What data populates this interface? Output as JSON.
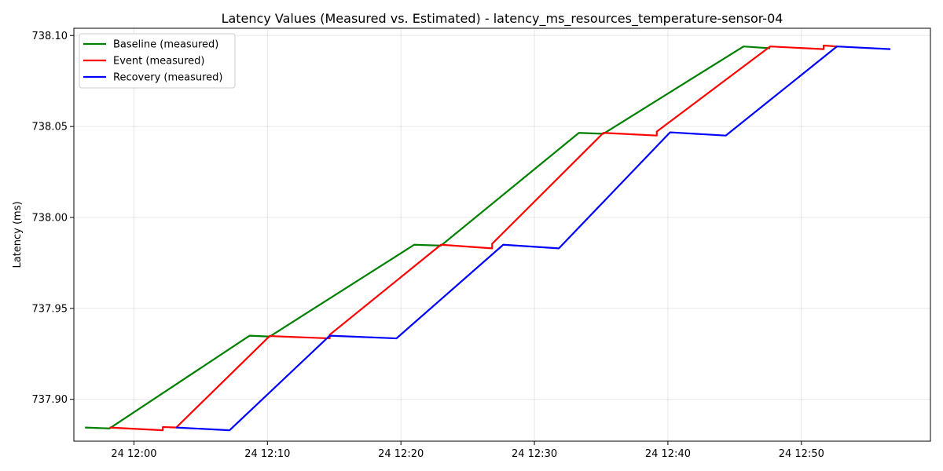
{
  "chart_data": {
    "type": "line",
    "title": "Latency Values (Measured vs. Estimated) - latency_ms_resources_temperature-sensor-04",
    "xlabel": "",
    "ylabel": "Latency (ms)",
    "x_axis_type": "time",
    "xlim": [
      "11:55:30",
      "12:59:40"
    ],
    "ylim": [
      737.877,
      738.104
    ],
    "x_ticks": [
      {
        "time": "12:00",
        "label": "24 12:00"
      },
      {
        "time": "12:10",
        "label": "24 12:10"
      },
      {
        "time": "12:20",
        "label": "24 12:20"
      },
      {
        "time": "12:30",
        "label": "24 12:30"
      },
      {
        "time": "12:40",
        "label": "24 12:40"
      },
      {
        "time": "12:50",
        "label": "24 12:50"
      }
    ],
    "y_ticks": [
      {
        "value": 737.9,
        "label": "737.90"
      },
      {
        "value": 737.95,
        "label": "737.95"
      },
      {
        "value": 738.0,
        "label": "738.00"
      },
      {
        "value": 738.05,
        "label": "738.05"
      },
      {
        "value": 738.1,
        "label": "738.10"
      }
    ],
    "grid": true,
    "legend_position": "top-left",
    "series": [
      {
        "name": "Baseline (measured)",
        "color": "#008000",
        "points": [
          [
            "11:56:20",
            737.8845
          ],
          [
            "11:58:10",
            737.884
          ],
          [
            "12:08:40",
            737.935
          ],
          [
            "12:10:10",
            737.9345
          ],
          [
            "12:21:00",
            737.985
          ],
          [
            "12:23:00",
            737.9845
          ],
          [
            "12:33:20",
            738.0465
          ],
          [
            "12:35:10",
            738.046
          ],
          [
            "12:45:40",
            738.094
          ],
          [
            "12:47:40",
            738.093
          ]
        ]
      },
      {
        "name": "Event (measured)",
        "color": "#ff0000",
        "points": [
          [
            "11:58:10",
            737.8845
          ],
          [
            "12:02:10",
            737.883
          ],
          [
            "12:02:10",
            737.8848
          ],
          [
            "12:03:10",
            737.8845
          ],
          [
            "12:10:10",
            737.9348
          ],
          [
            "12:14:40",
            737.9335
          ],
          [
            "12:14:40",
            737.9355
          ],
          [
            "12:23:00",
            737.985
          ],
          [
            "12:26:50",
            737.983
          ],
          [
            "12:26:50",
            737.9855
          ],
          [
            "12:35:10",
            738.0465
          ],
          [
            "12:39:10",
            738.045
          ],
          [
            "12:39:10",
            738.0472
          ],
          [
            "12:47:40",
            738.094
          ],
          [
            "12:51:40",
            738.0925
          ],
          [
            "12:51:40",
            738.0945
          ],
          [
            "12:52:40",
            738.094
          ]
        ]
      },
      {
        "name": "Recovery (measured)",
        "color": "#0000ff",
        "points": [
          [
            "12:03:10",
            737.8845
          ],
          [
            "12:07:10",
            737.883
          ],
          [
            "12:14:40",
            737.935
          ],
          [
            "12:19:40",
            737.9335
          ],
          [
            "12:27:40",
            737.985
          ],
          [
            "12:31:50",
            737.983
          ],
          [
            "12:40:10",
            738.0468
          ],
          [
            "12:44:20",
            738.045
          ],
          [
            "12:52:40",
            738.094
          ],
          [
            "12:56:40",
            738.0925
          ]
        ]
      }
    ]
  }
}
